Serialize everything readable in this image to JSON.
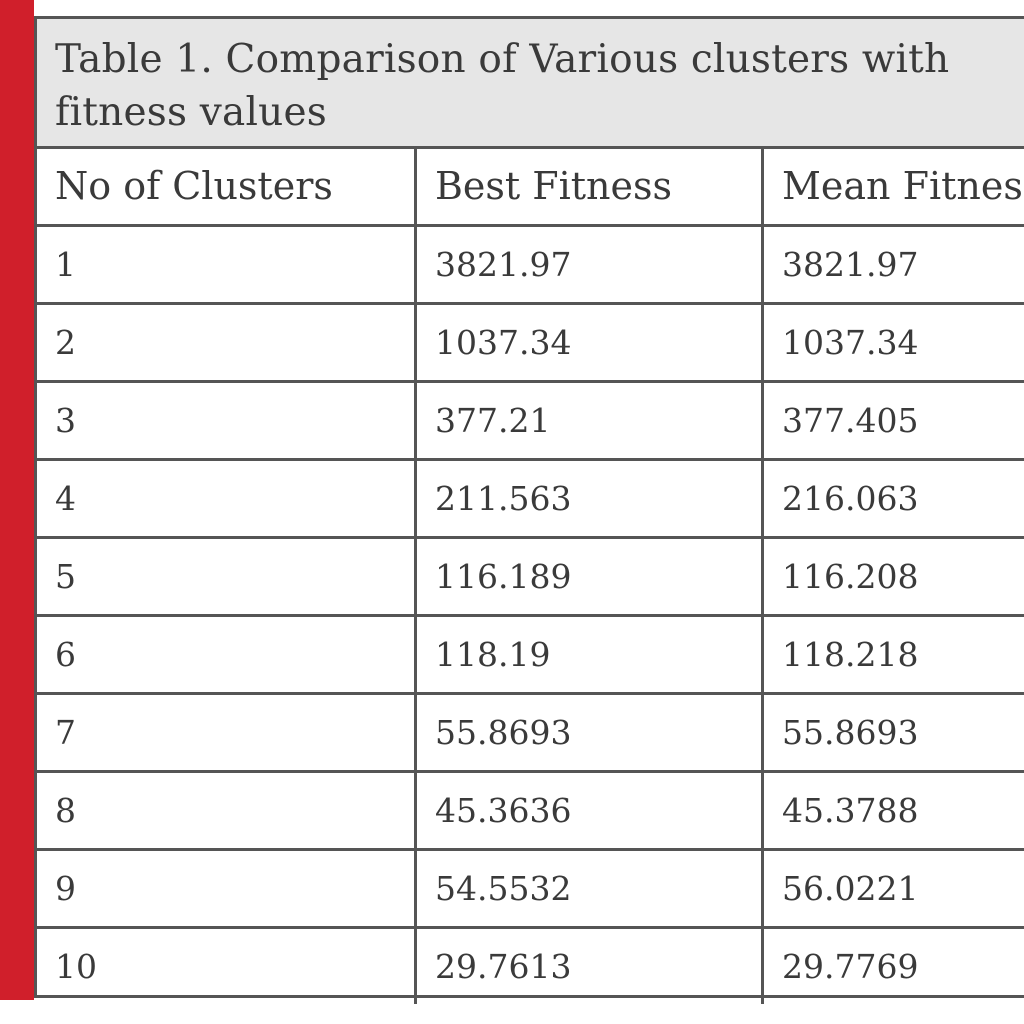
{
  "caption": {
    "line1": "Table 1. Comparison of Various clusters with",
    "line2": "fitness values"
  },
  "columns": [
    "No of Clusters",
    "Best Fitness",
    "Mean Fitnes"
  ],
  "rows": [
    [
      "1",
      "3821.97",
      "3821.97"
    ],
    [
      "2",
      "1037.34",
      "1037.34"
    ],
    [
      "3",
      "377.21",
      "377.405"
    ],
    [
      "4",
      "211.563",
      "216.063"
    ],
    [
      "5",
      "116.189",
      "116.208"
    ],
    [
      "6",
      "118.19",
      "118.218"
    ],
    [
      "7",
      "55.8693",
      "55.8693"
    ],
    [
      "8",
      "45.3636",
      "45.3788"
    ],
    [
      "9",
      "54.5532",
      "56.0221"
    ],
    [
      "10",
      "29.7613",
      "29.7769"
    ]
  ],
  "colors": {
    "accent_bar": "#d01f2b",
    "caption_bg": "#e6e6e6",
    "grid": "#555555"
  }
}
